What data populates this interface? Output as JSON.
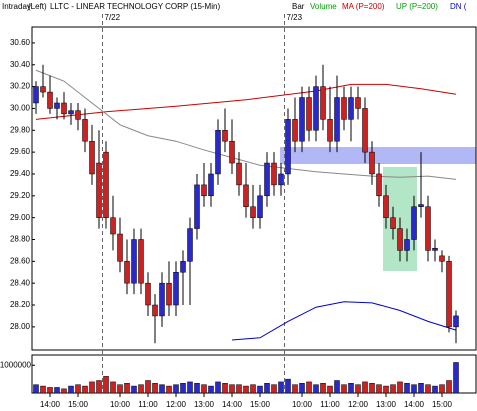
{
  "chart_data": {
    "type": "candlestick",
    "header": [
      "Intraday",
      "(Left)",
      "LLTC - LINEAR TECHNOLOGY CORP  (15-Min)"
    ],
    "legend": [
      {
        "label": "Bar",
        "color": "#000000"
      },
      {
        "label": "Volume",
        "color": "#00a000"
      },
      {
        "label": "MA (P=200)",
        "color": "#cc0000"
      },
      {
        "label": "UP (P=200)",
        "color": "#00a000"
      },
      {
        "label": "DN (",
        "color": "#0000cc"
      }
    ],
    "sessions": [
      {
        "label": "7/22",
        "start": 10
      },
      {
        "label": "7/23",
        "start": 36
      }
    ],
    "up_color": "#2a2acc",
    "down_color": "#cc2222",
    "open": [
      30.05,
      30.2,
      30.15,
      30.0,
      30.05,
      29.95,
      29.98,
      29.9,
      29.7,
      29.5,
      29.6,
      29.0,
      28.85,
      28.6,
      28.4,
      28.8,
      28.4,
      28.2,
      28.1,
      28.4,
      28.2,
      28.5,
      28.6,
      28.9,
      29.3,
      29.2,
      29.4,
      29.8,
      29.7,
      29.5,
      29.3,
      29.1,
      29.0,
      29.2,
      29.5,
      29.3,
      29.4,
      29.9,
      29.7,
      30.1,
      29.8,
      30.2,
      29.9,
      29.7,
      30.1,
      29.9,
      30.1,
      30.0,
      29.6,
      29.4,
      29.2,
      29.0,
      28.9,
      28.7,
      28.8,
      29.1,
      29.1,
      28.7,
      28.65,
      28.6,
      28.0
    ],
    "high": [
      30.25,
      30.4,
      30.3,
      30.1,
      30.15,
      30.05,
      30.05,
      30.0,
      29.85,
      29.8,
      29.7,
      29.2,
      29.0,
      28.8,
      28.9,
      28.9,
      28.5,
      28.3,
      28.5,
      28.6,
      28.6,
      28.7,
      29.0,
      29.4,
      29.5,
      29.5,
      29.9,
      30.0,
      29.9,
      29.6,
      29.5,
      29.3,
      29.3,
      29.6,
      29.6,
      29.5,
      30.0,
      30.1,
      30.2,
      30.2,
      30.3,
      30.4,
      30.2,
      30.3,
      30.2,
      30.2,
      30.2,
      30.1,
      29.7,
      29.5,
      29.3,
      29.1,
      29.0,
      28.9,
      29.2,
      29.6,
      29.2,
      28.8,
      28.7,
      28.65,
      28.15
    ],
    "low": [
      29.95,
      30.1,
      29.95,
      29.9,
      29.9,
      29.85,
      29.8,
      29.6,
      29.3,
      28.9,
      28.9,
      28.7,
      28.5,
      28.3,
      28.3,
      28.3,
      28.1,
      27.85,
      28.0,
      28.1,
      28.1,
      28.2,
      28.2,
      28.8,
      29.1,
      29.1,
      29.3,
      29.6,
      29.4,
      29.2,
      29.0,
      28.9,
      28.9,
      29.1,
      29.2,
      29.2,
      29.3,
      29.6,
      29.6,
      29.7,
      29.7,
      29.8,
      29.6,
      29.6,
      29.8,
      29.7,
      29.9,
      29.5,
      29.3,
      29.1,
      28.9,
      28.8,
      28.6,
      28.6,
      28.7,
      29.0,
      28.6,
      28.6,
      28.5,
      27.95,
      27.85
    ],
    "close": [
      30.2,
      30.15,
      30.0,
      30.05,
      29.95,
      29.98,
      29.9,
      29.7,
      29.4,
      29.0,
      29.0,
      28.85,
      28.6,
      28.4,
      28.8,
      28.4,
      28.2,
      28.1,
      28.4,
      28.2,
      28.5,
      28.6,
      28.9,
      29.3,
      29.2,
      29.4,
      29.8,
      29.7,
      29.5,
      29.3,
      29.1,
      29.0,
      29.2,
      29.5,
      29.3,
      29.4,
      29.9,
      29.7,
      30.1,
      29.8,
      30.2,
      29.9,
      29.7,
      30.1,
      29.9,
      30.1,
      30.0,
      29.6,
      29.4,
      29.2,
      29.0,
      28.9,
      28.7,
      28.8,
      29.1,
      29.12,
      28.7,
      28.72,
      28.6,
      28.0,
      28.1
    ],
    "volume": [
      300000,
      250000,
      200000,
      200000,
      150000,
      250000,
      300000,
      250000,
      400000,
      450000,
      600000,
      400000,
      300000,
      350000,
      250000,
      300000,
      450000,
      350000,
      300000,
      250000,
      300000,
      350000,
      400000,
      350000,
      300000,
      250000,
      400000,
      350000,
      300000,
      300000,
      250000,
      300000,
      250000,
      350000,
      300000,
      400000,
      500000,
      300000,
      350000,
      400000,
      300000,
      350000,
      250000,
      450000,
      300000,
      350000,
      300000,
      400000,
      350000,
      300000,
      250000,
      300000,
      400000,
      350000,
      300000,
      350000,
      300000,
      250000,
      300000,
      450000,
      1100000
    ],
    "overlays": [
      {
        "color": "#cc0000",
        "x": [
          0,
          10,
          20,
          30,
          40,
          45,
          50,
          55,
          60
        ],
        "values": [
          29.9,
          29.97,
          30.02,
          30.08,
          30.16,
          30.22,
          30.22,
          30.18,
          30.13
        ]
      },
      {
        "color": "#888888",
        "x": [
          0,
          4,
          8,
          12,
          16,
          20,
          24,
          28,
          32,
          36,
          40,
          44,
          48,
          52,
          56,
          60
        ],
        "values": [
          30.35,
          30.25,
          30.05,
          29.85,
          29.75,
          29.7,
          29.62,
          29.55,
          29.48,
          29.45,
          29.42,
          29.4,
          29.38,
          29.37,
          29.38,
          29.35
        ]
      },
      {
        "color": "#0000cc",
        "x": [
          28,
          32,
          36,
          40,
          44,
          48,
          52,
          56,
          60
        ],
        "values": [
          27.88,
          27.9,
          28.05,
          28.18,
          28.23,
          28.22,
          28.15,
          28.05,
          27.97
        ]
      }
    ],
    "ylim": [
      27.8,
      30.7
    ],
    "yticks": [
      {
        "value": 30.6,
        "label": "30.60"
      },
      {
        "value": 30.4,
        "label": "30.40"
      },
      {
        "value": 30.2,
        "label": "30.20"
      },
      {
        "value": 30,
        "label": "30.00"
      },
      {
        "value": 29.8,
        "label": "29.80"
      },
      {
        "value": 29.6,
        "label": "29.60"
      },
      {
        "value": 29.4,
        "label": "29.40"
      },
      {
        "value": 29.2,
        "label": "29.20"
      },
      {
        "value": 29,
        "label": "29.00"
      },
      {
        "value": 28.8,
        "label": "28.80"
      },
      {
        "value": 28.6,
        "label": "28.60"
      },
      {
        "value": 28.4,
        "label": "28.40"
      },
      {
        "value": 28.2,
        "label": "28.20"
      },
      {
        "value": 28,
        "label": "28.00"
      }
    ],
    "vlim": [
      0,
      1370000
    ],
    "vticks": [
      1000000
    ],
    "xticks": [
      {
        "value": 2,
        "label": "14:00"
      },
      {
        "value": 6,
        "label": "15:00"
      },
      {
        "value": 12,
        "label": "10:00"
      },
      {
        "value": 16,
        "label": "11:00"
      },
      {
        "value": 20,
        "label": "12:00"
      },
      {
        "value": 24,
        "label": "13:00"
      },
      {
        "value": 28,
        "label": "14:00"
      },
      {
        "value": 32,
        "label": "15:00"
      },
      {
        "value": 38,
        "label": "10:00"
      },
      {
        "value": 42,
        "label": "11:00"
      },
      {
        "value": 46,
        "label": "12:00"
      },
      {
        "value": 50,
        "label": "13:00"
      },
      {
        "value": 54,
        "label": "14:00"
      },
      {
        "value": 58,
        "label": "15:00"
      }
    ]
  }
}
